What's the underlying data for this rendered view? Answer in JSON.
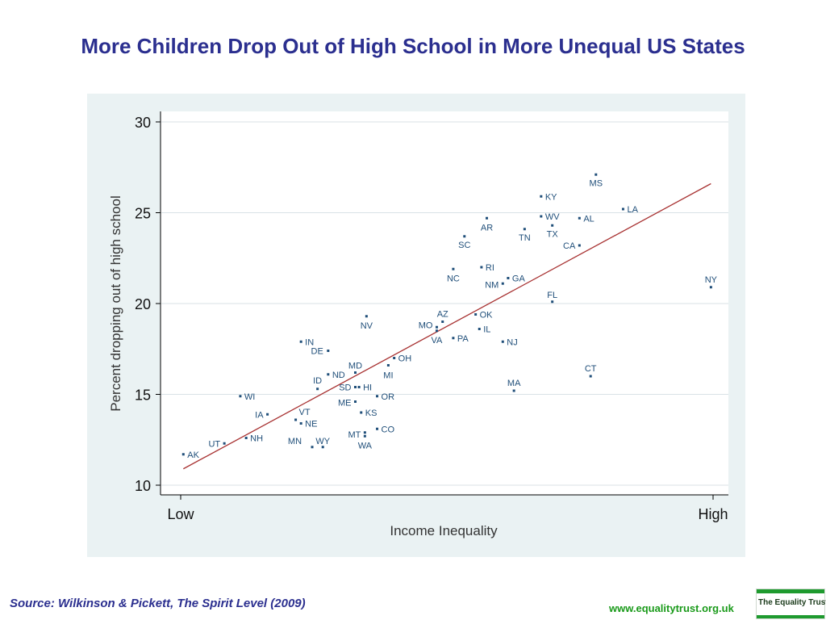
{
  "title": "More Children Drop Out of High School in More Unequal US States",
  "source": "Source: Wilkinson & Pickett, The Spirit Level (2009)",
  "website": "www.equalitytrust.org.uk",
  "logo_text": "The Equality Trust",
  "colors": {
    "title": "#2b2f8f",
    "panel": "#eaf2f3",
    "point": "#1f4e79",
    "label": "#1f4e79",
    "fit_line": "#a83232",
    "grid": "#d9e2e6",
    "website": "#1a9a1a",
    "logo_green": "#1e9a2e"
  },
  "chart_data": {
    "type": "scatter",
    "xlabel": "Income Inequality",
    "ylabel": "Percent dropping out of high school",
    "x_tick_labels": [
      "Low",
      "High"
    ],
    "xlim": [
      0,
      100
    ],
    "ylim": [
      10,
      30
    ],
    "yticks": [
      10,
      15,
      20,
      25,
      30
    ],
    "grid": true,
    "points": [
      {
        "label": "AK",
        "x": 0.5,
        "y": 11.7
      },
      {
        "label": "UT",
        "x": 8.2,
        "y": 12.3
      },
      {
        "label": "NH",
        "x": 12.3,
        "y": 12.6
      },
      {
        "label": "WI",
        "x": 11.2,
        "y": 14.9
      },
      {
        "label": "IA",
        "x": 16.3,
        "y": 13.9
      },
      {
        "label": "VT",
        "x": 21.6,
        "y": 13.6
      },
      {
        "label": "NE",
        "x": 22.6,
        "y": 13.4
      },
      {
        "label": "MN",
        "x": 24.7,
        "y": 12.1
      },
      {
        "label": "WY",
        "x": 26.7,
        "y": 12.1
      },
      {
        "label": "IN",
        "x": 22.6,
        "y": 17.9
      },
      {
        "label": "DE",
        "x": 27.7,
        "y": 17.4
      },
      {
        "label": "ND",
        "x": 27.7,
        "y": 16.1
      },
      {
        "label": "ID",
        "x": 25.7,
        "y": 15.3
      },
      {
        "label": "MD",
        "x": 32.8,
        "y": 16.2
      },
      {
        "label": "SD",
        "x": 32.8,
        "y": 15.4
      },
      {
        "label": "HI",
        "x": 33.5,
        "y": 15.4
      },
      {
        "label": "ME",
        "x": 32.8,
        "y": 14.6
      },
      {
        "label": "KS",
        "x": 33.9,
        "y": 14.0
      },
      {
        "label": "MT",
        "x": 34.6,
        "y": 12.9
      },
      {
        "label": "WA",
        "x": 34.6,
        "y": 12.7
      },
      {
        "label": "CO",
        "x": 36.9,
        "y": 13.1
      },
      {
        "label": "OR",
        "x": 36.9,
        "y": 14.9
      },
      {
        "label": "MI",
        "x": 39.0,
        "y": 16.6
      },
      {
        "label": "OH",
        "x": 40.1,
        "y": 17.0
      },
      {
        "label": "NV",
        "x": 34.9,
        "y": 19.3
      },
      {
        "label": "MO",
        "x": 48.1,
        "y": 18.7
      },
      {
        "label": "AZ",
        "x": 49.2,
        "y": 19.0
      },
      {
        "label": "VA",
        "x": 48.1,
        "y": 18.5
      },
      {
        "label": "PA",
        "x": 51.2,
        "y": 18.1
      },
      {
        "label": "OK",
        "x": 55.4,
        "y": 19.4
      },
      {
        "label": "IL",
        "x": 56.1,
        "y": 18.6
      },
      {
        "label": "NJ",
        "x": 60.5,
        "y": 17.9
      },
      {
        "label": "NC",
        "x": 51.2,
        "y": 21.9
      },
      {
        "label": "RI",
        "x": 56.5,
        "y": 22.0
      },
      {
        "label": "NM",
        "x": 60.5,
        "y": 21.1
      },
      {
        "label": "GA",
        "x": 61.5,
        "y": 21.4
      },
      {
        "label": "SC",
        "x": 53.3,
        "y": 23.7
      },
      {
        "label": "AR",
        "x": 57.5,
        "y": 24.7
      },
      {
        "label": "TN",
        "x": 64.6,
        "y": 24.1
      },
      {
        "label": "KY",
        "x": 67.7,
        "y": 25.9
      },
      {
        "label": "WV",
        "x": 67.7,
        "y": 24.8
      },
      {
        "label": "TX",
        "x": 69.8,
        "y": 24.3
      },
      {
        "label": "AL",
        "x": 74.9,
        "y": 24.7
      },
      {
        "label": "CA",
        "x": 74.9,
        "y": 23.2
      },
      {
        "label": "MS",
        "x": 78.0,
        "y": 27.1
      },
      {
        "label": "LA",
        "x": 83.1,
        "y": 25.2
      },
      {
        "label": "FL",
        "x": 69.8,
        "y": 20.1
      },
      {
        "label": "MA",
        "x": 62.6,
        "y": 15.2
      },
      {
        "label": "CT",
        "x": 77.0,
        "y": 16.0
      },
      {
        "label": "NY",
        "x": 99.6,
        "y": 20.9
      }
    ],
    "fit_line": {
      "x": [
        0.5,
        99.6
      ],
      "y": [
        10.9,
        26.6
      ]
    }
  }
}
